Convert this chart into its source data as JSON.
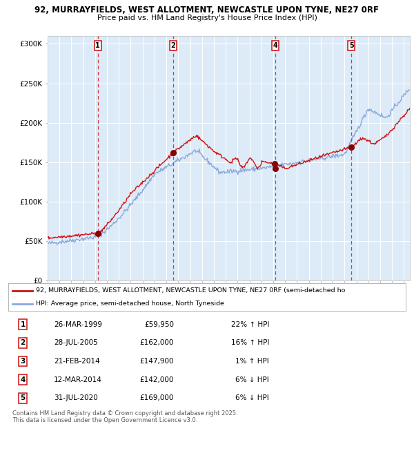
{
  "title1": "92, MURRAYFIELDS, WEST ALLOTMENT, NEWCASTLE UPON TYNE, NE27 0RF",
  "title2": "Price paid vs. HM Land Registry's House Price Index (HPI)",
  "bg_color": "#ddeaf7",
  "red_line_color": "#cc1111",
  "blue_line_color": "#88aadd",
  "grid_color": "#ffffff",
  "sale_marker_color": "#880000",
  "vline_color": "#cc2222",
  "ylim": [
    0,
    310000
  ],
  "yticks": [
    0,
    50000,
    100000,
    150000,
    200000,
    250000,
    300000
  ],
  "ytick_labels": [
    "£0",
    "£50K",
    "£100K",
    "£150K",
    "£200K",
    "£250K",
    "£300K"
  ],
  "sales": [
    {
      "num": 1,
      "date_label": "26-MAR-1999",
      "year": 1999.23,
      "price": 59950,
      "pct": "22%",
      "dir": "↑"
    },
    {
      "num": 2,
      "date_label": "28-JUL-2005",
      "year": 2005.57,
      "price": 162000,
      "pct": "16%",
      "dir": "↑"
    },
    {
      "num": 3,
      "date_label": "21-FEB-2014",
      "year": 2014.14,
      "price": 147900,
      "pct": "1%",
      "dir": "↑"
    },
    {
      "num": 4,
      "date_label": "12-MAR-2014",
      "year": 2014.19,
      "price": 142000,
      "pct": "6%",
      "dir": "↓"
    },
    {
      "num": 5,
      "date_label": "31-JUL-2020",
      "year": 2020.58,
      "price": 169000,
      "pct": "6%",
      "dir": "↓"
    }
  ],
  "vline_sales": [
    1,
    2,
    4,
    5
  ],
  "legend_red": "92, MURRAYFIELDS, WEST ALLOTMENT, NEWCASTLE UPON TYNE, NE27 0RF (semi-detached ho",
  "legend_blue": "HPI: Average price, semi-detached house, North Tyneside",
  "table_rows": [
    [
      1,
      "26-MAR-1999",
      "£59,950",
      "22% ↑ HPI"
    ],
    [
      2,
      "28-JUL-2005",
      "£162,000",
      "16% ↑ HPI"
    ],
    [
      3,
      "21-FEB-2014",
      "£147,900",
      "1% ↑ HPI"
    ],
    [
      4,
      "12-MAR-2014",
      "£142,000",
      "6% ↓ HPI"
    ],
    [
      5,
      "31-JUL-2020",
      "£169,000",
      "6% ↓ HPI"
    ]
  ],
  "footer": "Contains HM Land Registry data © Crown copyright and database right 2025.\nThis data is licensed under the Open Government Licence v3.0.",
  "year_start": 1995.0,
  "year_end": 2025.5
}
